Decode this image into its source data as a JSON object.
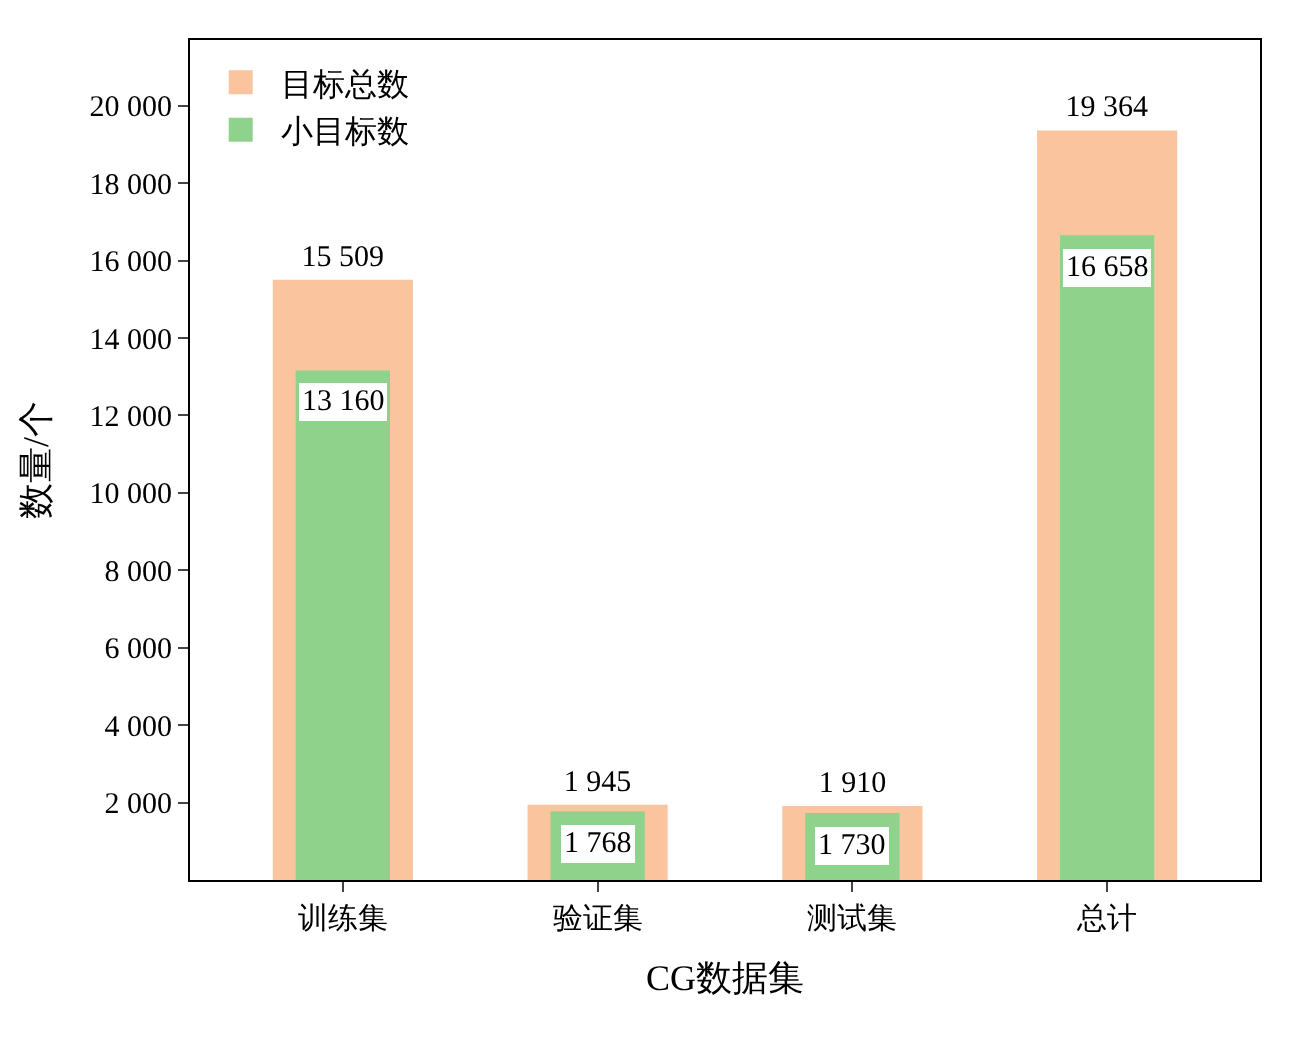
{
  "chart_data": {
    "type": "bar",
    "xlabel": "CG数据集",
    "ylabel": "数量/个",
    "categories": [
      "训练集",
      "验证集",
      "测试集",
      "总计"
    ],
    "series": [
      {
        "name": "目标总数",
        "color": "#f9c49e",
        "values": [
          15509,
          1945,
          1910,
          19364
        ]
      },
      {
        "name": "小目标数",
        "color": "#8ed28b",
        "values": [
          13160,
          1768,
          1730,
          16658
        ]
      }
    ],
    "ylim": [
      0,
      21700
    ],
    "yticks": [
      {
        "value": 2000,
        "label": "2 000"
      },
      {
        "value": 4000,
        "label": "4 000"
      },
      {
        "value": 6000,
        "label": "6 000"
      },
      {
        "value": 8000,
        "label": "8 000"
      },
      {
        "value": 10000,
        "label": "10 000"
      },
      {
        "value": 12000,
        "label": "12 000"
      },
      {
        "value": 14000,
        "label": "14 000"
      },
      {
        "value": 16000,
        "label": "16 000"
      },
      {
        "value": 18000,
        "label": "18 000"
      },
      {
        "value": 20000,
        "label": "20 000"
      }
    ],
    "data_labels": true,
    "grid": false,
    "legend": "top left"
  }
}
